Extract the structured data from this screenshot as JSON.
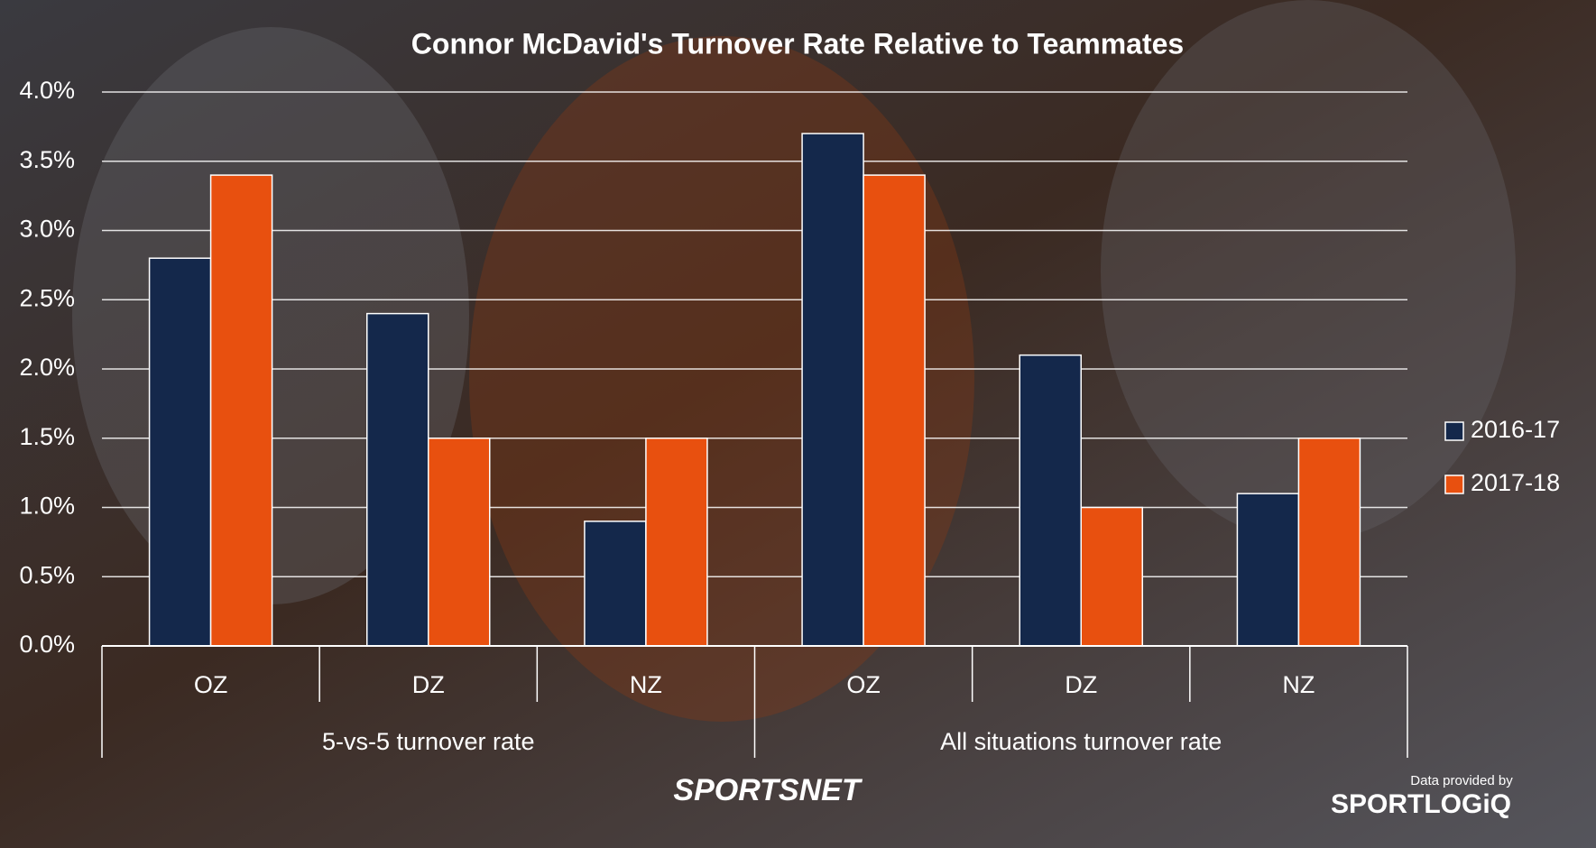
{
  "chart_data": {
    "type": "bar",
    "title": "Connor McDavid's Turnover Rate Relative to Teammates",
    "categories": [
      "OZ",
      "DZ",
      "NZ",
      "OZ",
      "DZ",
      "NZ"
    ],
    "groups": [
      "5-vs-5 turnover rate",
      "All situations turnover rate"
    ],
    "series": [
      {
        "name": "2016-17",
        "color": "#14284b",
        "values": [
          2.8,
          2.4,
          0.9,
          3.7,
          2.1,
          1.1
        ]
      },
      {
        "name": "2017-18",
        "color": "#e8500f",
        "values": [
          3.4,
          1.5,
          1.5,
          3.4,
          1.0,
          1.5
        ]
      }
    ],
    "ylim": [
      0,
      4
    ],
    "yticks": [
      {
        "value": 0,
        "label": "0.0%"
      },
      {
        "value": 0.5,
        "label": "0.5%"
      },
      {
        "value": 1,
        "label": "1.0%"
      },
      {
        "value": 1.5,
        "label": "1.5%"
      },
      {
        "value": 2,
        "label": "2.0%"
      },
      {
        "value": 2.5,
        "label": "2.5%"
      },
      {
        "value": 3,
        "label": "3.0%"
      },
      {
        "value": 3.5,
        "label": "3.5%"
      },
      {
        "value": 4,
        "label": "4.0%"
      }
    ],
    "grid": true,
    "legend": "right"
  },
  "footer": {
    "brand": "SPORTSNET",
    "credit": "Data provided by",
    "provider": "SPORTLOGiQ"
  }
}
